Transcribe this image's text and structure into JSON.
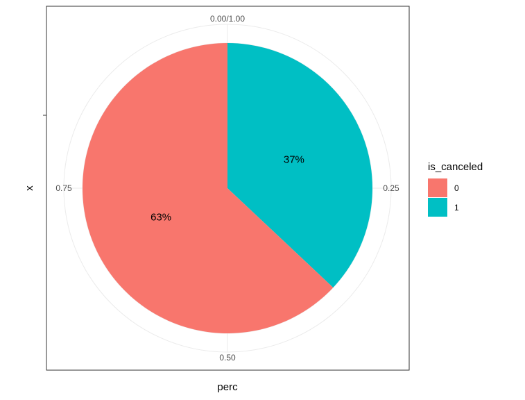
{
  "chart_data": {
    "type": "pie",
    "polar": true,
    "theta_axis": {
      "breaks": [
        0,
        0.25,
        0.5,
        0.75
      ],
      "labels": [
        "0.00/1.00",
        "0.25",
        "0.50",
        "0.75"
      ]
    },
    "xlabel": "perc",
    "ylabel": "x",
    "legend": {
      "title": "is_canceled",
      "position": "right",
      "entries": [
        {
          "name": "0",
          "color": "#F8766D"
        },
        {
          "name": "1",
          "color": "#00BFC4"
        }
      ]
    },
    "slices": [
      {
        "category": "1",
        "value": 0.37,
        "label": "37%",
        "color": "#00BFC4"
      },
      {
        "category": "0",
        "value": 0.63,
        "label": "63%",
        "color": "#F8766D"
      }
    ],
    "grid": true
  }
}
